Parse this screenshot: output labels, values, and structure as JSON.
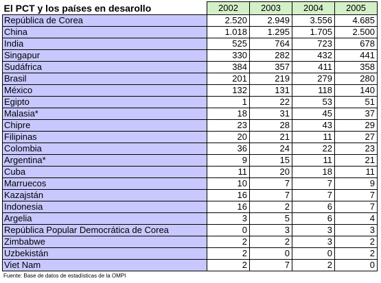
{
  "title": "El PCT y los países en desarollo",
  "years": [
    "2002",
    "2003",
    "2004",
    "2005"
  ],
  "rows": [
    {
      "country": "República de Corea",
      "values": [
        "2.520",
        "2.949",
        "3.556",
        "4.685"
      ]
    },
    {
      "country": "China",
      "values": [
        "1.018",
        "1.295",
        "1.705",
        "2.500"
      ]
    },
    {
      "country": "India",
      "values": [
        "525",
        "764",
        "723",
        "678"
      ]
    },
    {
      "country": "Singapur",
      "values": [
        "330",
        "282",
        "432",
        "441"
      ]
    },
    {
      "country": "Sudáfrica",
      "values": [
        "384",
        "357",
        "411",
        "358"
      ]
    },
    {
      "country": "Brasil",
      "values": [
        "201",
        "219",
        "279",
        "280"
      ]
    },
    {
      "country": "México",
      "values": [
        "132",
        "131",
        "118",
        "140"
      ]
    },
    {
      "country": "Egipto",
      "values": [
        "1",
        "22",
        "53",
        "51"
      ]
    },
    {
      "country": "Malasia*",
      "values": [
        "18",
        "31",
        "45",
        "37"
      ]
    },
    {
      "country": "Chipre",
      "values": [
        "23",
        "28",
        "43",
        "29"
      ]
    },
    {
      "country": "Filipinas",
      "values": [
        "20",
        "21",
        "11",
        "27"
      ]
    },
    {
      "country": "Colombia",
      "values": [
        "36",
        "24",
        "22",
        "23"
      ]
    },
    {
      "country": "Argentina*",
      "values": [
        "9",
        "15",
        "11",
        "21"
      ]
    },
    {
      "country": "Cuba",
      "values": [
        "11",
        "20",
        "18",
        "11"
      ]
    },
    {
      "country": "Marruecos",
      "values": [
        "10",
        "7",
        "7",
        "9"
      ]
    },
    {
      "country": "Kazajstán",
      "values": [
        "16",
        "7",
        "7",
        "7"
      ]
    },
    {
      "country": "Indonesia",
      "values": [
        "16",
        "2",
        "6",
        "7"
      ]
    },
    {
      "country": "Argelia",
      "values": [
        "3",
        "5",
        "6",
        "4"
      ]
    },
    {
      "country": "República Popular Democrática de Corea",
      "values": [
        "0",
        "3",
        "3",
        "3"
      ]
    },
    {
      "country": "Zimbabwe",
      "values": [
        "2",
        "2",
        "3",
        "2"
      ]
    },
    {
      "country": "Uzbekistán",
      "values": [
        "2",
        "0",
        "0",
        "2"
      ]
    },
    {
      "country": "Viet Nam",
      "values": [
        "2",
        "7",
        "2",
        "0"
      ]
    }
  ],
  "source": "Fuente: Base de datos de estadísticas de la OMPI",
  "colors": {
    "country_bg": "#c8c8ff",
    "year_header_bg": "#d4f0c8"
  }
}
